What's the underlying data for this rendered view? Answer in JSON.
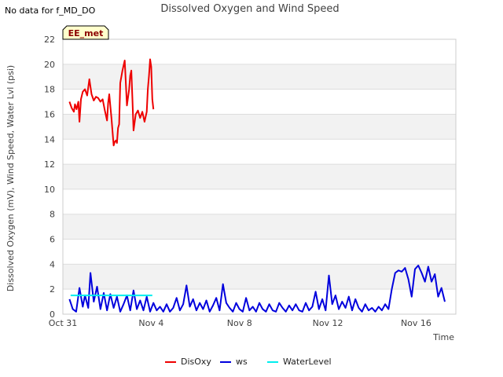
{
  "notice": "No data for f_MD_DO",
  "chart_data": {
    "type": "line",
    "title": "Dissolved Oxygen and Wind Speed",
    "xlabel": "Time",
    "ylabel": "Dissolved Oxygen (mV), Wind Speed, Water Lvl (psi)",
    "ylim": [
      0,
      22
    ],
    "yticks": [
      0,
      2,
      4,
      6,
      8,
      10,
      12,
      14,
      16,
      18,
      20,
      22
    ],
    "xlim": [
      0,
      17.8
    ],
    "xticks": [
      {
        "value": 0,
        "label": "Oct 31"
      },
      {
        "value": 4,
        "label": "Nov 4"
      },
      {
        "value": 8,
        "label": "Nov 8"
      },
      {
        "value": 12,
        "label": "Nov 12"
      },
      {
        "value": 16,
        "label": "Nov 16"
      }
    ],
    "site_label": "EE_met",
    "series": [
      {
        "name": "DisOxy",
        "color": "#ee0000",
        "x": [
          0.3,
          0.4,
          0.5,
          0.55,
          0.62,
          0.7,
          0.75,
          0.82,
          0.9,
          1.0,
          1.1,
          1.2,
          1.3,
          1.4,
          1.5,
          1.6,
          1.7,
          1.8,
          1.9,
          2.0,
          2.05,
          2.1,
          2.2,
          2.3,
          2.35,
          2.4,
          2.45,
          2.5,
          2.55,
          2.6,
          2.7,
          2.8,
          2.9,
          3.0,
          3.05,
          3.1,
          3.15,
          3.2,
          3.3,
          3.4,
          3.5,
          3.6,
          3.7,
          3.8,
          3.85,
          3.9,
          3.95,
          4.0,
          4.05,
          4.1
        ],
        "y": [
          17.0,
          16.5,
          16.2,
          16.8,
          16.4,
          17.0,
          15.4,
          17.2,
          17.8,
          18.0,
          17.5,
          18.8,
          17.6,
          17.1,
          17.4,
          17.3,
          17.0,
          17.2,
          16.3,
          15.5,
          16.9,
          17.6,
          15.7,
          13.5,
          13.8,
          13.9,
          13.7,
          14.9,
          15.2,
          18.5,
          19.5,
          20.3,
          16.7,
          18.0,
          19.1,
          19.5,
          17.2,
          14.7,
          16.0,
          16.3,
          15.7,
          16.2,
          15.4,
          16.2,
          18.0,
          19.1,
          20.4,
          19.8,
          17.2,
          16.4
        ]
      },
      {
        "name": "ws",
        "color": "#0000dd",
        "x": [
          0.3,
          0.45,
          0.6,
          0.75,
          0.9,
          1.0,
          1.15,
          1.25,
          1.4,
          1.55,
          1.7,
          1.85,
          2.0,
          2.15,
          2.3,
          2.45,
          2.6,
          2.75,
          2.9,
          3.05,
          3.2,
          3.35,
          3.5,
          3.65,
          3.8,
          3.95,
          4.1,
          4.25,
          4.4,
          4.55,
          4.7,
          4.85,
          5.0,
          5.15,
          5.3,
          5.45,
          5.6,
          5.75,
          5.9,
          6.05,
          6.2,
          6.35,
          6.5,
          6.65,
          6.8,
          6.95,
          7.1,
          7.25,
          7.4,
          7.55,
          7.7,
          7.85,
          8.0,
          8.15,
          8.3,
          8.45,
          8.6,
          8.75,
          8.9,
          9.05,
          9.2,
          9.35,
          9.5,
          9.65,
          9.8,
          9.95,
          10.1,
          10.25,
          10.4,
          10.55,
          10.7,
          10.85,
          11.0,
          11.15,
          11.3,
          11.45,
          11.6,
          11.75,
          11.9,
          12.05,
          12.2,
          12.35,
          12.5,
          12.65,
          12.8,
          12.95,
          13.1,
          13.25,
          13.4,
          13.55,
          13.7,
          13.85,
          14.0,
          14.15,
          14.3,
          14.45,
          14.6,
          14.75,
          14.9,
          15.05,
          15.2,
          15.35,
          15.5,
          15.65,
          15.8,
          15.95,
          16.1,
          16.25,
          16.4,
          16.55,
          16.7,
          16.85,
          17.0,
          17.15,
          17.3
        ],
        "y": [
          1.2,
          0.4,
          0.2,
          2.1,
          0.6,
          1.5,
          0.5,
          3.3,
          1.0,
          2.2,
          0.4,
          1.7,
          0.3,
          1.6,
          0.5,
          1.4,
          0.2,
          0.8,
          1.5,
          0.3,
          1.9,
          0.4,
          1.1,
          0.3,
          1.4,
          0.2,
          0.9,
          0.3,
          0.6,
          0.2,
          0.8,
          0.2,
          0.5,
          1.3,
          0.3,
          0.8,
          2.3,
          0.6,
          1.2,
          0.3,
          0.9,
          0.4,
          1.1,
          0.2,
          0.7,
          1.3,
          0.3,
          2.4,
          0.9,
          0.5,
          0.2,
          0.9,
          0.4,
          0.2,
          1.3,
          0.3,
          0.6,
          0.2,
          0.9,
          0.4,
          0.2,
          0.8,
          0.3,
          0.2,
          0.9,
          0.5,
          0.2,
          0.7,
          0.3,
          0.8,
          0.3,
          0.2,
          0.9,
          0.3,
          0.6,
          1.8,
          0.4,
          1.2,
          0.3,
          3.1,
          0.8,
          1.5,
          0.4,
          1.0,
          0.5,
          1.4,
          0.3,
          1.2,
          0.5,
          0.2,
          0.8,
          0.3,
          0.5,
          0.2,
          0.6,
          0.3,
          0.8,
          0.4,
          2.0,
          3.3,
          3.5,
          3.4,
          3.7,
          2.8,
          1.4,
          3.6,
          3.9,
          3.3,
          2.6,
          3.8,
          2.6,
          3.2,
          1.4,
          2.1,
          1.0
        ],
        "badge_x": 0.9
      },
      {
        "name": "WaterLevel",
        "color": "#00eeee",
        "x": [
          0.35,
          4.05
        ],
        "y": [
          1.5,
          1.5
        ]
      }
    ],
    "legend_position": "bottom-center"
  }
}
